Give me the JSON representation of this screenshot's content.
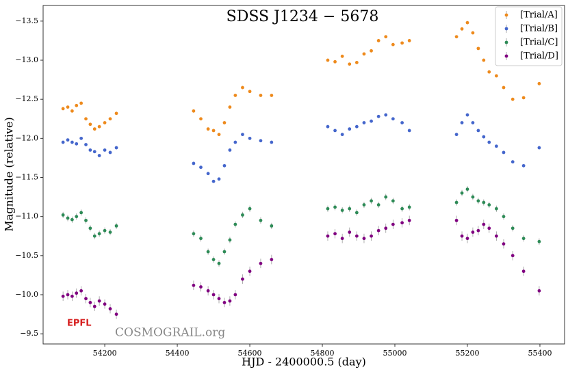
{
  "chart_data": {
    "type": "scatter",
    "title": "SDSS J1234 − 5678",
    "xlabel": "HJD - 2400000.5 (day)",
    "ylabel": "Magnitude (relative)",
    "annotations": [
      "EPFL",
      "COSMOGRAIL.org"
    ],
    "xlim": [
      54030,
      55468
    ],
    "xticks": [
      54200,
      54400,
      54600,
      54800,
      55000,
      55200,
      55400
    ],
    "ylim": [
      -9.37,
      -13.7
    ],
    "y_inverted": true,
    "yticks": [
      {
        "value": -13.5,
        "label": "−13.5"
      },
      {
        "value": -13.0,
        "label": "−13.0"
      },
      {
        "value": -12.5,
        "label": "−12.5"
      },
      {
        "value": -12.0,
        "label": "−12.0"
      },
      {
        "value": -11.5,
        "label": "−11.5"
      },
      {
        "value": -11.0,
        "label": "−11.0"
      },
      {
        "value": -10.5,
        "label": "−10.5"
      },
      {
        "value": -10.0,
        "label": "−10.0"
      },
      {
        "value": -9.5,
        "label": "−9.5"
      }
    ],
    "legend": "upper right",
    "x": [
      54085,
      54098,
      54110,
      54122,
      54135,
      54148,
      54160,
      54172,
      54185,
      54200,
      54215,
      54232,
      54445,
      54465,
      54485,
      54500,
      54515,
      54530,
      54545,
      54560,
      54580,
      54600,
      54630,
      54660,
      54815,
      54835,
      54855,
      54875,
      54895,
      54915,
      54935,
      54955,
      54975,
      54995,
      55020,
      55040,
      55170,
      55185,
      55200,
      55215,
      55230,
      55245,
      55260,
      55280,
      55300,
      55325,
      55355,
      55398
    ],
    "series": [
      {
        "name": "[Trial/A]",
        "color": "#ee8a1c",
        "error": 0.02,
        "values": [
          -12.38,
          -12.4,
          -12.35,
          -12.42,
          -12.45,
          -12.25,
          -12.18,
          -12.12,
          -12.15,
          -12.2,
          -12.25,
          -12.32,
          -12.35,
          -12.25,
          -12.12,
          -12.1,
          -12.05,
          -12.2,
          -12.4,
          -12.55,
          -12.65,
          -12.6,
          -12.55,
          -12.55,
          -13.0,
          -12.98,
          -13.05,
          -12.95,
          -12.97,
          -13.08,
          -13.12,
          -13.25,
          -13.3,
          -13.2,
          -13.22,
          -13.25,
          -13.3,
          -13.4,
          -13.48,
          -13.35,
          -13.15,
          -13.0,
          -12.85,
          -12.8,
          -12.65,
          -12.5,
          -12.52,
          -12.7
        ]
      },
      {
        "name": "[Trial/B]",
        "color": "#4466cc",
        "error": 0.02,
        "values": [
          -11.95,
          -11.98,
          -11.95,
          -11.93,
          -12.0,
          -11.92,
          -11.85,
          -11.83,
          -11.78,
          -11.85,
          -11.82,
          -11.88,
          -11.68,
          -11.63,
          -11.55,
          -11.45,
          -11.48,
          -11.65,
          -11.85,
          -11.95,
          -12.05,
          -12.0,
          -11.97,
          -11.95,
          -12.15,
          -12.1,
          -12.05,
          -12.12,
          -12.15,
          -12.2,
          -12.22,
          -12.28,
          -12.3,
          -12.25,
          -12.2,
          -12.1,
          -12.05,
          -12.2,
          -12.3,
          -12.2,
          -12.1,
          -12.02,
          -11.95,
          -11.9,
          -11.82,
          -11.7,
          -11.65,
          -11.88
        ]
      },
      {
        "name": "[Trial/C]",
        "color": "#2e8b57",
        "error": 0.04,
        "values": [
          -11.02,
          -10.98,
          -10.96,
          -11.0,
          -11.05,
          -10.95,
          -10.85,
          -10.75,
          -10.78,
          -10.82,
          -10.8,
          -10.88,
          -10.78,
          -10.72,
          -10.55,
          -10.45,
          -10.4,
          -10.55,
          -10.7,
          -10.9,
          -11.02,
          -11.1,
          -10.95,
          -10.88,
          -11.1,
          -11.12,
          -11.08,
          -11.1,
          -11.05,
          -11.15,
          -11.2,
          -11.15,
          -11.25,
          -11.2,
          -11.1,
          -11.12,
          -11.18,
          -11.3,
          -11.35,
          -11.25,
          -11.2,
          -11.18,
          -11.15,
          -11.1,
          -11.0,
          -10.85,
          -10.72,
          -10.68
        ]
      },
      {
        "name": "[Trial/D]",
        "color": "#800080",
        "error": 0.06,
        "values": [
          -9.98,
          -10.0,
          -9.98,
          -10.02,
          -10.05,
          -9.95,
          -9.9,
          -9.85,
          -9.92,
          -9.88,
          -9.82,
          -9.75,
          -10.12,
          -10.1,
          -10.05,
          -10.0,
          -9.95,
          -9.9,
          -9.92,
          -10.0,
          -10.2,
          -10.3,
          -10.4,
          -10.45,
          -10.75,
          -10.78,
          -10.72,
          -10.8,
          -10.75,
          -10.72,
          -10.75,
          -10.82,
          -10.85,
          -10.9,
          -10.92,
          -10.95,
          -10.95,
          -10.75,
          -10.72,
          -10.8,
          -10.82,
          -10.9,
          -10.85,
          -10.75,
          -10.65,
          -10.5,
          -10.3,
          -10.05
        ]
      }
    ]
  }
}
